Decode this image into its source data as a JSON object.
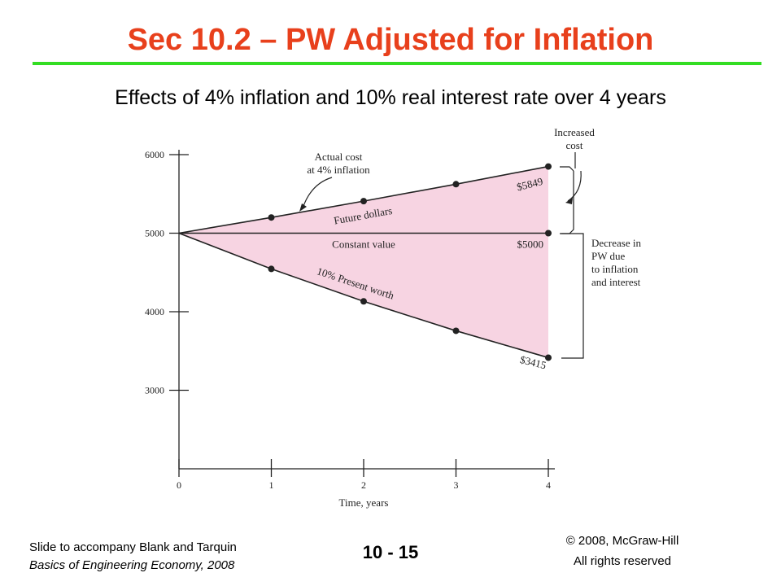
{
  "slide": {
    "title": "Sec 10.2 – PW Adjusted for Inflation",
    "subtitle": "Effects of 4% inflation and 10% real interest rate over 4 years",
    "number": "10 - 15",
    "footer_left_line1": "Slide to accompany Blank and Tarquin",
    "footer_left_line2": "Basics of Engineering Economy, 2008",
    "copyright_line1": "© 2008, McGraw-Hill",
    "copyright_line2": "All rights reserved",
    "colors": {
      "title": "#e8401c",
      "rule": "#33dd22",
      "fill": "#f7d4e2"
    }
  },
  "chart_data": {
    "type": "line",
    "title": "",
    "xlabel": "Time, years",
    "ylabel": "",
    "x": [
      0,
      1,
      2,
      3,
      4
    ],
    "xlim": [
      0,
      4
    ],
    "ylim": [
      2000,
      6000
    ],
    "y_ticks": [
      3000,
      4000,
      5000,
      6000
    ],
    "series": [
      {
        "name": "Future dollars",
        "values": [
          5000,
          5200,
          5408,
          5624,
          5849
        ]
      },
      {
        "name": "Constant value",
        "values": [
          5000,
          5000,
          5000,
          5000,
          5000
        ]
      },
      {
        "name": "10% Present worth",
        "values": [
          5000,
          4545,
          4132,
          3757,
          3415
        ]
      }
    ],
    "end_labels": {
      "future": "$5849",
      "constant": "$5000",
      "present": "$3415"
    },
    "annotations": {
      "actual_cost_line1": "Actual cost",
      "actual_cost_line2": "at 4% inflation",
      "increased_line1": "Increased",
      "increased_line2": "cost",
      "decrease_line1": "Decrease in",
      "decrease_line2": "PW due",
      "decrease_line3": "to inflation",
      "decrease_line4": "and interest"
    },
    "grid": false
  }
}
